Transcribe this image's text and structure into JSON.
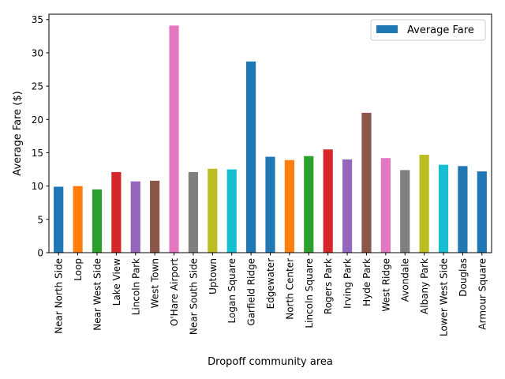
{
  "chart_data": {
    "type": "bar",
    "title": "",
    "xlabel": "Dropoff community area",
    "ylabel": "Average Fare ($)",
    "ylim": [
      0,
      35.8
    ],
    "yticks": [
      0,
      5,
      10,
      15,
      20,
      25,
      30,
      35
    ],
    "grid": false,
    "legend": {
      "placement": "top-right",
      "entries": [
        {
          "label": "Average Fare",
          "color": "#1f77b4"
        }
      ]
    },
    "categories": [
      "Near North Side",
      "Loop",
      "Near West Side",
      "Lake View",
      "Lincoln Park",
      "West Town",
      "O'Hare Airport",
      "Near South Side",
      "Uptown",
      "Logan Square",
      "Garfield Ridge",
      "Edgewater",
      "North Center",
      "Lincoln Square",
      "Rogers Park",
      "Irving Park",
      "Hyde Park",
      "West Ridge",
      "Avondale",
      "Albany Park",
      "Lower West Side",
      "Douglas",
      "Armour Square"
    ],
    "series": [
      {
        "name": "Average Fare",
        "values": [
          9.9,
          10.0,
          9.5,
          12.1,
          10.7,
          10.8,
          34.1,
          12.1,
          12.6,
          12.5,
          28.7,
          14.4,
          13.9,
          14.5,
          15.5,
          14.0,
          21.0,
          14.2,
          12.4,
          14.7,
          13.2,
          13.0,
          12.2
        ]
      }
    ],
    "bar_colors": [
      "#1f77b4",
      "#ff7f0e",
      "#2ca02c",
      "#d62728",
      "#9467bd",
      "#8c564b",
      "#e377c2",
      "#7f7f7f",
      "#bcbd22",
      "#17becf",
      "#1f77b4",
      "#1f77b4",
      "#ff7f0e",
      "#2ca02c",
      "#d62728",
      "#9467bd",
      "#8c564b",
      "#e377c2",
      "#7f7f7f",
      "#bcbd22",
      "#17becf",
      "#1f77b4",
      "#1f77b4"
    ]
  }
}
